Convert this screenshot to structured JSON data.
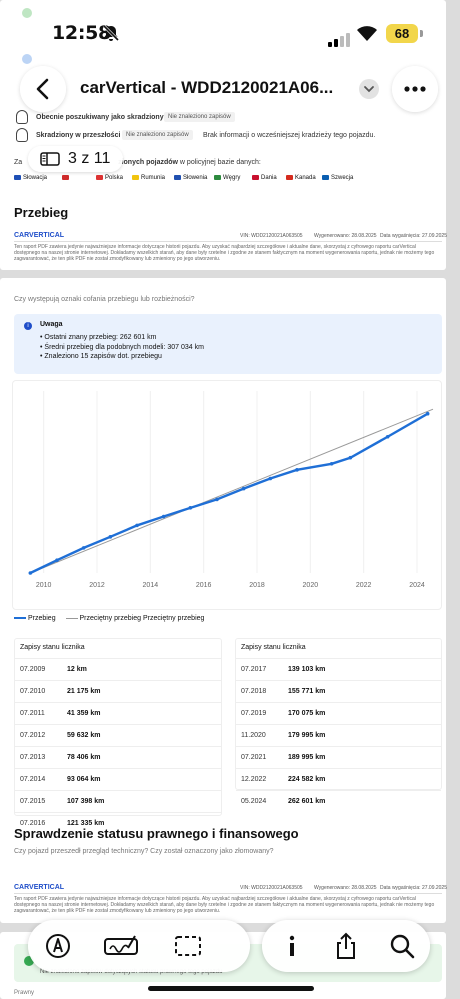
{
  "status": {
    "time": "12:58",
    "battery": "68"
  },
  "nav": {
    "title": "carVertical - WDD2120021A06...",
    "page_indicator": "3 z 11"
  },
  "theft": {
    "row1_label": "Obecnie poszukiwany jako skradziony",
    "row1_badge": "Nie znaleziono zapisów",
    "row2_label": "Skradziony w przeszłości",
    "row2_badge": "Nie znaleziono zapisów",
    "row2_note": "Brak informacji o wcześniejszej kradzieży tego pojazdu.",
    "db_prefix": "Za",
    "db_bold": "zionych pojazdów",
    "db_suffix": "w policyjnej bazie danych:",
    "countries": [
      {
        "name": "Słowacja",
        "color": "#1e4fb5"
      },
      {
        "name": "",
        "color": "#cf2b2b"
      },
      {
        "name": "Polska",
        "color": "#d33"
      },
      {
        "name": "Rumunia",
        "color": "#f1c40f"
      },
      {
        "name": "Słowenia",
        "color": "#2050b0"
      },
      {
        "name": "Węgry",
        "color": "#2d8a3e"
      },
      {
        "name": "Dania",
        "color": "#c8102e"
      },
      {
        "name": "Kanada",
        "color": "#d52b1e"
      },
      {
        "name": "Szwecja",
        "color": "#0a5eb0"
      }
    ]
  },
  "section_mileage": {
    "title": "Przebieg"
  },
  "report_header": {
    "logo": "CARVERTICAL",
    "vin": "VIN: WDD2120021A063505",
    "generated": "Wygenerowano: 28.08.2025",
    "valid": "Data wygaśnięcia: 27.09.2025",
    "disclaimer": "Ten raport PDF zawiera jedynie najważniejsze informacje dotyczące historii pojazdu. Aby uzyskać najbardziej szczegółowe i aktualne dane, skorzystaj z cyfrowego raportu carVertical dostępnego na naszej stronie internetowej. Dokładamy wszelkich starań, aby dane były rzetelne i zgodne ze stanem faktycznym na moment wygenerowania raportu, jednak nie możemy tego zagwarantować, że ten plik PDF nie został zmodyfikowany lub zmieniony po jego utworzeniu."
  },
  "rollback": {
    "question": "Czy występują oznaki cofania przebiegu lub rozbieżności?",
    "alert_title": "Uwaga",
    "bullets": [
      "Ostatni znany przebieg: 262 601 km",
      "Średni przebieg dla podobnych modeli: 307 034 km",
      "Znaleziono 15 zapisów dot. przebiegu"
    ]
  },
  "chart_data": {
    "type": "line",
    "x_ticks": [
      "2010",
      "2012",
      "2014",
      "2016",
      "2018",
      "2020",
      "2022",
      "2024"
    ],
    "xlim": [
      2009.3,
      2024.6
    ],
    "series": [
      {
        "name": "Przebieg",
        "color": "#1f6fd6",
        "points": [
          {
            "x": 2009.5,
            "y": 12
          },
          {
            "x": 2010.5,
            "y": 21175
          },
          {
            "x": 2011.5,
            "y": 41359
          },
          {
            "x": 2012.5,
            "y": 59632
          },
          {
            "x": 2013.5,
            "y": 78406
          },
          {
            "x": 2014.5,
            "y": 93064
          },
          {
            "x": 2015.5,
            "y": 107398
          },
          {
            "x": 2016.5,
            "y": 121335
          },
          {
            "x": 2017.5,
            "y": 139103
          },
          {
            "x": 2018.5,
            "y": 155771
          },
          {
            "x": 2019.5,
            "y": 170075
          },
          {
            "x": 2020.8,
            "y": 179995
          },
          {
            "x": 2021.5,
            "y": 189995
          },
          {
            "x": 2022.9,
            "y": 224582
          },
          {
            "x": 2024.4,
            "y": 262601
          }
        ]
      },
      {
        "name": "Przeciętny przebieg",
        "color": "#999999",
        "points": [
          {
            "x": 2009.5,
            "y": 0
          },
          {
            "x": 2024.6,
            "y": 270000
          }
        ]
      }
    ],
    "ylim": [
      0,
      300000
    ],
    "legend": [
      "Przebieg",
      "Przeciętny przebieg",
      "Przeciętny przebieg"
    ]
  },
  "odometer": {
    "header": "Zapisy stanu licznika",
    "left": [
      {
        "date": "07.2009",
        "km": "12 km"
      },
      {
        "date": "07.2010",
        "km": "21 175 km"
      },
      {
        "date": "07.2011",
        "km": "41 359 km"
      },
      {
        "date": "07.2012",
        "km": "59 632 km"
      },
      {
        "date": "07.2013",
        "km": "78 406 km"
      },
      {
        "date": "07.2014",
        "km": "93 064 km"
      },
      {
        "date": "07.2015",
        "km": "107 398 km"
      },
      {
        "date": "07.2016",
        "km": "121 335 km"
      }
    ],
    "right": [
      {
        "date": "07.2017",
        "km": "139 103 km"
      },
      {
        "date": "07.2018",
        "km": "155 771 km"
      },
      {
        "date": "07.2019",
        "km": "170 075 km"
      },
      {
        "date": "11.2020",
        "km": "179 995 km"
      },
      {
        "date": "07.2021",
        "km": "189 995 km"
      },
      {
        "date": "12.2022",
        "km": "224 582 km"
      },
      {
        "date": "05.2024",
        "km": "262 601 km"
      }
    ]
  },
  "legal": {
    "title": "Sprawdzenie statusu prawnego i finansowego",
    "question": "Czy pojazd przeszedł przegląd techniczny? Czy został oznaczony jako złomowany?"
  },
  "bottom": {
    "partial_text": "Nie znaleziono zapisów dotyczących statusu prawnego tego pojazdu",
    "partial_label": "Prawny"
  }
}
